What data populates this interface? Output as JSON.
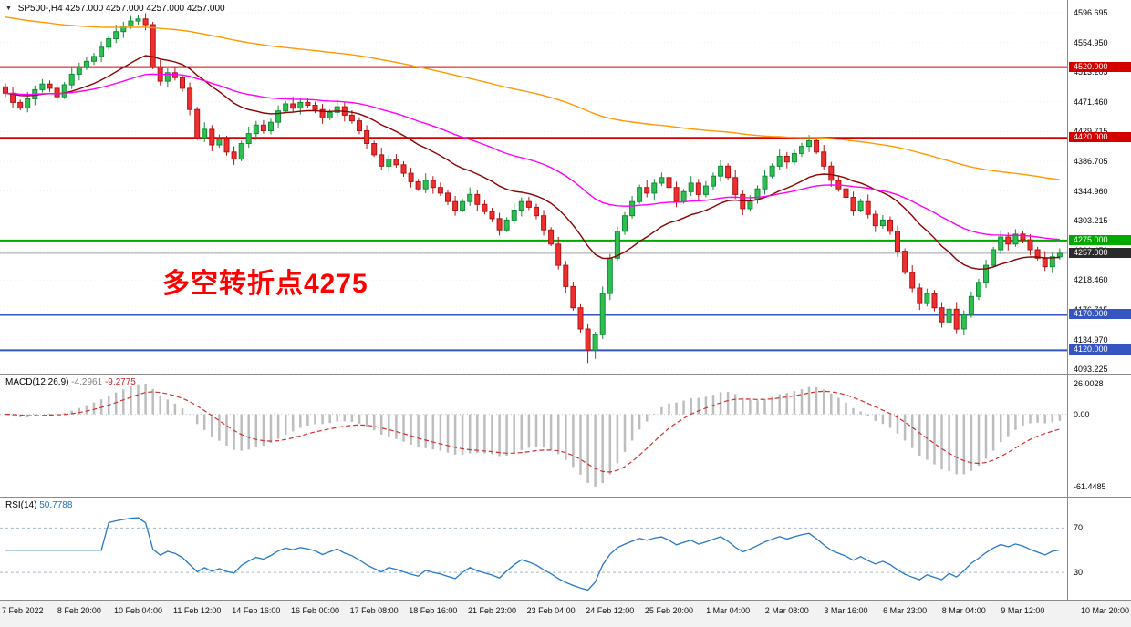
{
  "header": {
    "symbol": "SP500-,H4",
    "ohlc": "4257.000 4257.000 4257.000 4257.000"
  },
  "chart_data": {
    "type": "candlestick",
    "symbol": "SP500-",
    "timeframe": "H4",
    "visible_price_range": [
      4093.225,
      4614.7
    ],
    "grid": "horizontal-dotted",
    "annotation": {
      "text": "多空转折点4275",
      "color": "#ff0000"
    },
    "colors": {
      "up": "#2FBF51",
      "up_border": "#128A38",
      "down": "#EF2F2F",
      "down_border": "#B01515",
      "histogram": "#BDBDBD",
      "macd_signal": "#D23030",
      "rsi_line": "#2579C8",
      "rsi_levels": "#A8B8C8",
      "grid": "#EFEFEF",
      "current_price_line": "#A0A0A0"
    },
    "levels": [
      {
        "value": 4520,
        "label": "4520.000",
        "color": "#D40000"
      },
      {
        "value": 4420,
        "label": "4420.000",
        "color": "#D40000"
      },
      {
        "value": 4275,
        "label": "4275.000",
        "color": "#00A800"
      },
      {
        "value": 4170,
        "label": "4170.000",
        "color": "#3555C0"
      },
      {
        "value": 4120,
        "label": "4120.000",
        "color": "#3555C0"
      }
    ],
    "current_price": {
      "value": 4257.0,
      "label": "4257.000",
      "tag_bg": "#2A2A2A"
    },
    "moving_averages": [
      {
        "period": 20,
        "color": "#8B0000"
      },
      {
        "period": 50,
        "color": "#FF00FF"
      },
      {
        "period": 150,
        "color": "#FF9900",
        "seed": 4592
      }
    ],
    "price_axis_labels": [
      "4596.695",
      "4554.950",
      "4513.205",
      "4471.460",
      "4429.715",
      "4386.705",
      "4344.960",
      "4303.215",
      "4261.470",
      "4218.460",
      "4176.715",
      "4134.970",
      "4093.225"
    ],
    "time_labels": [
      "7 Feb 2022",
      "8 Feb 20:00",
      "10 Feb 04:00",
      "11 Feb 12:00",
      "14 Feb 16:00",
      "16 Feb 00:00",
      "17 Feb 08:00",
      "18 Feb 16:00",
      "21 Feb 23:00",
      "23 Feb 04:00",
      "24 Feb 12:00",
      "25 Feb 20:00",
      "1 Mar 04:00",
      "2 Mar 08:00",
      "3 Mar 16:00",
      "6 Mar 23:00",
      "8 Mar 04:00",
      "9 Mar 12:00",
      "10 Mar 20:00"
    ],
    "indicators": {
      "macd": {
        "title": "MACD(12,26,9)",
        "value_main": "-4.2961",
        "value_signal": "-9.2775",
        "axis": [
          {
            "value": 26.0028,
            "label": "26.0028"
          },
          {
            "value": 0,
            "label": "0.00"
          },
          {
            "value": -61.4485,
            "label": "-61.4485"
          }
        ]
      },
      "rsi": {
        "title": "RSI(14)",
        "period": 14,
        "value": "50.7788",
        "levels": [
          70,
          30
        ]
      }
    },
    "candles": [
      [
        4492,
        4497,
        4478,
        4483
      ],
      [
        4483,
        4491,
        4462,
        4470
      ],
      [
        4470,
        4474,
        4459,
        4462
      ],
      [
        4462,
        4485,
        4456,
        4475
      ],
      [
        4475,
        4494,
        4466,
        4488
      ],
      [
        4488,
        4503,
        4484,
        4496
      ],
      [
        4496,
        4501,
        4485,
        4490
      ],
      [
        4490,
        4498,
        4470,
        4478
      ],
      [
        4478,
        4499,
        4475,
        4495
      ],
      [
        4495,
        4520,
        4489,
        4510
      ],
      [
        4510,
        4526,
        4501,
        4520
      ],
      [
        4520,
        4535,
        4516,
        4528
      ],
      [
        4528,
        4540,
        4523,
        4535
      ],
      [
        4535,
        4556,
        4527,
        4548
      ],
      [
        4548,
        4564,
        4545,
        4560
      ],
      [
        4560,
        4580,
        4554,
        4570
      ],
      [
        4570,
        4584,
        4561,
        4578
      ],
      [
        4578,
        4592,
        4574,
        4585
      ],
      [
        4585,
        4593,
        4580,
        4588
      ],
      [
        4588,
        4596,
        4572,
        4580
      ],
      [
        4580,
        4584,
        4517,
        4520
      ],
      [
        4520,
        4530,
        4494,
        4500
      ],
      [
        4500,
        4518,
        4491,
        4512
      ],
      [
        4512,
        4519,
        4501,
        4505
      ],
      [
        4505,
        4510,
        4485,
        4490
      ],
      [
        4490,
        4498,
        4452,
        4460
      ],
      [
        4460,
        4464,
        4417,
        4420
      ],
      [
        4420,
        4442,
        4414,
        4432
      ],
      [
        4432,
        4438,
        4401,
        4410
      ],
      [
        4410,
        4425,
        4406,
        4418
      ],
      [
        4418,
        4423,
        4395,
        4400
      ],
      [
        4400,
        4408,
        4382,
        4390
      ],
      [
        4390,
        4416,
        4387,
        4412
      ],
      [
        4412,
        4436,
        4406,
        4426
      ],
      [
        4426,
        4444,
        4417,
        4438
      ],
      [
        4438,
        4445,
        4426,
        4430
      ],
      [
        4430,
        4447,
        4425,
        4442
      ],
      [
        4442,
        4466,
        4434,
        4458
      ],
      [
        4458,
        4472,
        4455,
        4468
      ],
      [
        4468,
        4478,
        4456,
        4462
      ],
      [
        4462,
        4476,
        4453,
        4470
      ],
      [
        4470,
        4477,
        4462,
        4466
      ],
      [
        4466,
        4471,
        4455,
        4460
      ],
      [
        4460,
        4468,
        4440,
        4448
      ],
      [
        4448,
        4460,
        4445,
        4456
      ],
      [
        4456,
        4474,
        4450,
        4464
      ],
      [
        4464,
        4470,
        4443,
        4452
      ],
      [
        4452,
        4459,
        4440,
        4444
      ],
      [
        4444,
        4449,
        4425,
        4430
      ],
      [
        4430,
        4438,
        4404,
        4412
      ],
      [
        4412,
        4416,
        4393,
        4396
      ],
      [
        4396,
        4406,
        4374,
        4380
      ],
      [
        4380,
        4396,
        4371,
        4390
      ],
      [
        4390,
        4397,
        4378,
        4382
      ],
      [
        4382,
        4387,
        4365,
        4370
      ],
      [
        4370,
        4378,
        4350,
        4358
      ],
      [
        4358,
        4362,
        4345,
        4348
      ],
      [
        4348,
        4370,
        4342,
        4360
      ],
      [
        4360,
        4366,
        4341,
        4350
      ],
      [
        4350,
        4357,
        4338,
        4342
      ],
      [
        4342,
        4347,
        4325,
        4330
      ],
      [
        4330,
        4338,
        4310,
        4318
      ],
      [
        4318,
        4334,
        4315,
        4330
      ],
      [
        4330,
        4350,
        4324,
        4340
      ],
      [
        4340,
        4346,
        4317,
        4326
      ],
      [
        4326,
        4333,
        4312,
        4316
      ],
      [
        4316,
        4321,
        4301,
        4306
      ],
      [
        4306,
        4314,
        4282,
        4290
      ],
      [
        4290,
        4308,
        4287,
        4304
      ],
      [
        4304,
        4328,
        4298,
        4318
      ],
      [
        4318,
        4336,
        4309,
        4330
      ],
      [
        4330,
        4337,
        4318,
        4322
      ],
      [
        4322,
        4327,
        4305,
        4310
      ],
      [
        4310,
        4318,
        4282,
        4290
      ],
      [
        4290,
        4294,
        4267,
        4270
      ],
      [
        4270,
        4280,
        4234,
        4240
      ],
      [
        4240,
        4246,
        4201,
        4210
      ],
      [
        4210,
        4217,
        4176,
        4180
      ],
      [
        4180,
        4185,
        4145,
        4150
      ],
      [
        4150,
        4158,
        4102,
        4120
      ],
      [
        4120,
        4146,
        4108,
        4142
      ],
      [
        4142,
        4210,
        4136,
        4200
      ],
      [
        4200,
        4256,
        4191,
        4250
      ],
      [
        4250,
        4295,
        4246,
        4288
      ],
      [
        4288,
        4315,
        4283,
        4310
      ],
      [
        4310,
        4338,
        4306,
        4330
      ],
      [
        4330,
        4354,
        4327,
        4350
      ],
      [
        4350,
        4360,
        4336,
        4342
      ],
      [
        4342,
        4362,
        4333,
        4356
      ],
      [
        4356,
        4371,
        4352,
        4364
      ],
      [
        4364,
        4369,
        4345,
        4350
      ],
      [
        4350,
        4358,
        4322,
        4330
      ],
      [
        4330,
        4348,
        4327,
        4344
      ],
      [
        4344,
        4366,
        4338,
        4356
      ],
      [
        4356,
        4362,
        4331,
        4340
      ],
      [
        4340,
        4359,
        4336,
        4352
      ],
      [
        4352,
        4371,
        4347,
        4366
      ],
      [
        4366,
        4388,
        4358,
        4380
      ],
      [
        4380,
        4384,
        4361,
        4364
      ],
      [
        4364,
        4374,
        4334,
        4340
      ],
      [
        4340,
        4346,
        4311,
        4320
      ],
      [
        4320,
        4339,
        4316,
        4332
      ],
      [
        4332,
        4353,
        4327,
        4348
      ],
      [
        4348,
        4374,
        4340,
        4366
      ],
      [
        4366,
        4384,
        4363,
        4380
      ],
      [
        4380,
        4404,
        4374,
        4394
      ],
      [
        4394,
        4400,
        4377,
        4386
      ],
      [
        4386,
        4405,
        4382,
        4398
      ],
      [
        4398,
        4413,
        4393,
        4408
      ],
      [
        4408,
        4424,
        4400,
        4416
      ],
      [
        4416,
        4420,
        4397,
        4400
      ],
      [
        4400,
        4410,
        4374,
        4380
      ],
      [
        4380,
        4386,
        4351,
        4360
      ],
      [
        4360,
        4367,
        4344,
        4348
      ],
      [
        4348,
        4353,
        4331,
        4336
      ],
      [
        4336,
        4344,
        4310,
        4318
      ],
      [
        4318,
        4334,
        4315,
        4330
      ],
      [
        4330,
        4340,
        4306,
        4312
      ],
      [
        4312,
        4318,
        4287,
        4296
      ],
      [
        4296,
        4311,
        4292,
        4304
      ],
      [
        4304,
        4309,
        4283,
        4288
      ],
      [
        4288,
        4296,
        4252,
        4260
      ],
      [
        4260,
        4264,
        4227,
        4230
      ],
      [
        4230,
        4240,
        4202,
        4208
      ],
      [
        4208,
        4214,
        4177,
        4186
      ],
      [
        4186,
        4207,
        4182,
        4200
      ],
      [
        4200,
        4205,
        4175,
        4180
      ],
      [
        4180,
        4188,
        4152,
        4160
      ],
      [
        4160,
        4182,
        4157,
        4178
      ],
      [
        4178,
        4188,
        4144,
        4150
      ],
      [
        4150,
        4176,
        4141,
        4170
      ],
      [
        4170,
        4203,
        4166,
        4196
      ],
      [
        4196,
        4221,
        4191,
        4216
      ],
      [
        4216,
        4248,
        4208,
        4240
      ],
      [
        4240,
        4266,
        4237,
        4262
      ],
      [
        4262,
        4290,
        4256,
        4280
      ],
      [
        4280,
        4286,
        4261,
        4270
      ],
      [
        4270,
        4291,
        4266,
        4284
      ],
      [
        4284,
        4289,
        4271,
        4276
      ],
      [
        4276,
        4284,
        4254,
        4262
      ],
      [
        4262,
        4266,
        4247,
        4250
      ],
      [
        4250,
        4260,
        4232,
        4238
      ],
      [
        4238,
        4258,
        4229,
        4252
      ],
      [
        4252,
        4264,
        4248,
        4257
      ]
    ]
  }
}
